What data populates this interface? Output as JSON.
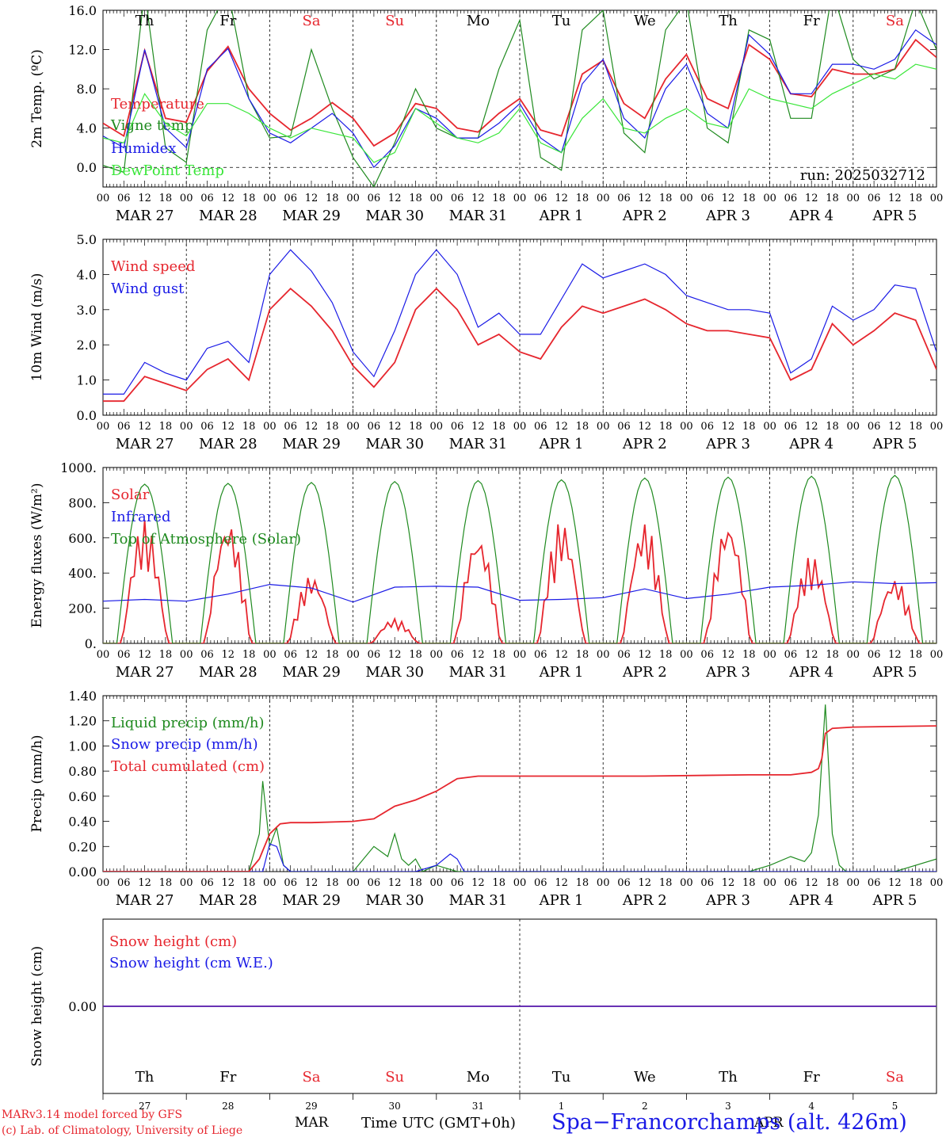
{
  "colors": {
    "red": "#e6262e",
    "green": "#1f8a1f",
    "blue": "#1a1ae6",
    "lightgreen": "#39e639",
    "black": "#000000"
  },
  "days": {
    "dates": [
      "MAR 27",
      "MAR 28",
      "MAR 29",
      "MAR 30",
      "MAR 31",
      "APR  1",
      "APR  2",
      "APR  3",
      "APR  4",
      "APR  5"
    ],
    "weekdays": [
      "Th",
      "Fr",
      "Sa",
      "Su",
      "Mo",
      "Tu",
      "We",
      "Th",
      "Fr",
      "Sa"
    ],
    "weekday_colors": [
      "#000000",
      "#000000",
      "#e6262e",
      "#e6262e",
      "#000000",
      "#000000",
      "#000000",
      "#000000",
      "#000000",
      "#e6262e"
    ],
    "daynums": [
      "27",
      "28",
      "29",
      "30",
      "31",
      "1",
      "2",
      "3",
      "4",
      "5"
    ],
    "hour_ticks": [
      "00",
      "06",
      "12",
      "18"
    ],
    "end_tick": "00"
  },
  "chart_data": [
    {
      "type": "line",
      "ylabel": "2m Temp. (ºC)",
      "ylim": [
        -2,
        16
      ],
      "yticks": [
        "0.0",
        "4.0",
        "8.0",
        "12.0",
        "16.0"
      ],
      "run_label": "run: 2025032712",
      "series": [
        {
          "name": "Temperature",
          "color": "#e6262e",
          "x": [
            0,
            6,
            12,
            18,
            24,
            30,
            36,
            42,
            48,
            54,
            60,
            66,
            72,
            78,
            84,
            90,
            96,
            102,
            108,
            114,
            120,
            126,
            132,
            138,
            144,
            150,
            156,
            162,
            168,
            174,
            180,
            186,
            192,
            198,
            204,
            210,
            216,
            222,
            228,
            234,
            240
          ],
          "values": [
            4.5,
            3.2,
            11.9,
            5.0,
            4.6,
            9.8,
            12.3,
            8.0,
            5.5,
            3.8,
            5.0,
            6.6,
            5.0,
            2.2,
            3.5,
            6.5,
            6.0,
            4.0,
            3.6,
            5.5,
            7.0,
            3.8,
            3.2,
            9.5,
            10.9,
            6.5,
            5.0,
            9.0,
            11.5,
            7.0,
            6.0,
            12.5,
            11.0,
            7.5,
            7.2,
            10.0,
            9.5,
            9.5,
            10.0,
            13.0,
            11.2
          ]
        },
        {
          "name": "Vigne temp",
          "color": "#1f8a1f",
          "x": [
            0,
            6,
            12,
            18,
            24,
            30,
            36,
            42,
            48,
            54,
            60,
            66,
            72,
            78,
            84,
            90,
            96,
            102,
            108,
            114,
            120,
            126,
            132,
            138,
            144,
            150,
            156,
            162,
            168,
            174,
            180,
            186,
            192,
            198,
            204,
            210,
            216,
            222,
            228,
            234,
            240
          ],
          "values": [
            0.2,
            -0.5,
            18.0,
            2.0,
            0.5,
            14.0,
            18.0,
            7.0,
            3.0,
            3.2,
            12.0,
            6.0,
            1.0,
            -2.0,
            2.5,
            8.0,
            4.0,
            3.0,
            3.0,
            10.0,
            15.0,
            1.0,
            -0.3,
            14.0,
            16.0,
            3.5,
            1.5,
            14.0,
            17.0,
            4.0,
            2.5,
            14.0,
            13.0,
            5.0,
            5.0,
            18.0,
            11.0,
            9.0,
            10.0,
            17.0,
            12.0
          ]
        },
        {
          "name": "Humidex",
          "color": "#1a1ae6",
          "x": [
            0,
            6,
            12,
            18,
            24,
            30,
            36,
            42,
            48,
            54,
            60,
            66,
            72,
            78,
            84,
            90,
            96,
            102,
            108,
            114,
            120,
            126,
            132,
            138,
            144,
            150,
            156,
            162,
            168,
            174,
            180,
            186,
            192,
            198,
            204,
            210,
            216,
            222,
            228,
            234,
            240
          ],
          "values": [
            3.2,
            2.0,
            12.0,
            4.0,
            2.0,
            10.0,
            12.1,
            7.0,
            3.5,
            2.5,
            4.0,
            5.5,
            3.5,
            0.0,
            2.2,
            6.0,
            5.0,
            3.0,
            3.0,
            4.5,
            6.5,
            3.0,
            1.5,
            8.5,
            11.0,
            5.0,
            3.0,
            8.0,
            10.5,
            5.5,
            4.0,
            13.5,
            11.5,
            7.5,
            7.5,
            10.5,
            10.5,
            10.0,
            11.0,
            14.0,
            12.5
          ]
        },
        {
          "name": "DewPoint Temp",
          "color": "#39e639",
          "x": [
            0,
            6,
            12,
            18,
            24,
            30,
            36,
            42,
            48,
            54,
            60,
            66,
            72,
            78,
            84,
            90,
            96,
            102,
            108,
            114,
            120,
            126,
            132,
            138,
            144,
            150,
            156,
            162,
            168,
            174,
            180,
            186,
            192,
            198,
            204,
            210,
            216,
            222,
            228,
            234,
            240
          ],
          "values": [
            3.0,
            2.5,
            7.5,
            4.5,
            3.2,
            6.5,
            6.5,
            5.5,
            4.0,
            3.0,
            4.0,
            3.5,
            3.0,
            0.5,
            1.5,
            6.0,
            4.5,
            3.0,
            2.5,
            3.5,
            6.0,
            2.5,
            1.5,
            5.0,
            7.0,
            4.0,
            3.5,
            5.0,
            6.0,
            4.5,
            4.0,
            8.0,
            7.0,
            6.5,
            6.0,
            7.5,
            8.5,
            9.5,
            9.0,
            10.5,
            10.0
          ]
        }
      ]
    },
    {
      "type": "line",
      "ylabel": "10m Wind (m/s)",
      "ylim": [
        0,
        5
      ],
      "yticks": [
        "0.0",
        "1.0",
        "2.0",
        "3.0",
        "4.0",
        "5.0"
      ],
      "series": [
        {
          "name": "Wind speed",
          "color": "#e6262e",
          "x": [
            0,
            6,
            12,
            18,
            24,
            30,
            36,
            42,
            48,
            54,
            60,
            66,
            72,
            78,
            84,
            90,
            96,
            102,
            108,
            114,
            120,
            126,
            132,
            138,
            144,
            150,
            156,
            162,
            168,
            174,
            180,
            186,
            192,
            198,
            204,
            210,
            216,
            222,
            228,
            234,
            240
          ],
          "values": [
            0.4,
            0.4,
            1.1,
            0.9,
            0.7,
            1.3,
            1.6,
            1.0,
            3.0,
            3.6,
            3.1,
            2.4,
            1.4,
            0.8,
            1.5,
            3.0,
            3.6,
            3.0,
            2.0,
            2.3,
            1.8,
            1.6,
            2.5,
            3.1,
            2.9,
            3.1,
            3.3,
            3.0,
            2.6,
            2.4,
            2.4,
            2.3,
            2.2,
            1.0,
            1.3,
            2.6,
            2.0,
            2.4,
            2.9,
            2.7,
            1.3
          ]
        },
        {
          "name": "Wind gust",
          "color": "#1a1ae6",
          "x": [
            0,
            6,
            12,
            18,
            24,
            30,
            36,
            42,
            48,
            54,
            60,
            66,
            72,
            78,
            84,
            90,
            96,
            102,
            108,
            114,
            120,
            126,
            132,
            138,
            144,
            150,
            156,
            162,
            168,
            174,
            180,
            186,
            192,
            198,
            204,
            210,
            216,
            222,
            228,
            234,
            240
          ],
          "values": [
            0.6,
            0.6,
            1.5,
            1.2,
            1.0,
            1.9,
            2.1,
            1.5,
            4.0,
            4.7,
            4.1,
            3.2,
            1.8,
            1.1,
            2.4,
            4.0,
            4.7,
            4.0,
            2.5,
            2.9,
            2.3,
            2.3,
            3.3,
            4.3,
            3.9,
            4.1,
            4.3,
            4.0,
            3.4,
            3.2,
            3.0,
            3.0,
            2.9,
            1.2,
            1.6,
            3.1,
            2.7,
            3.0,
            3.7,
            3.6,
            1.8
          ]
        }
      ]
    },
    {
      "type": "line",
      "ylabel": "Energy fluxes (W/m²)",
      "ylim": [
        0,
        1000
      ],
      "yticks": [
        "0.",
        "200.",
        "400.",
        "600.",
        "800.",
        "1000."
      ],
      "series": [
        {
          "name": "Solar",
          "color": "#e6262e",
          "peaks": [
            700,
            700,
            390,
            140,
            620,
            700,
            690,
            700,
            500,
            370
          ]
        },
        {
          "name": "Infrared",
          "color": "#1a1ae6",
          "x": [
            0,
            12,
            24,
            36,
            48,
            60,
            72,
            84,
            96,
            108,
            120,
            132,
            144,
            156,
            168,
            180,
            192,
            204,
            216,
            228,
            240
          ],
          "values": [
            240,
            250,
            240,
            280,
            335,
            315,
            235,
            320,
            325,
            320,
            245,
            250,
            260,
            310,
            255,
            280,
            320,
            330,
            350,
            340,
            345
          ]
        },
        {
          "name": "Top of Atmosphere (Solar)",
          "color": "#1f8a1f",
          "peaks": [
            905,
            910,
            915,
            920,
            925,
            930,
            940,
            945,
            950,
            955
          ]
        }
      ]
    },
    {
      "type": "line",
      "ylabel": "Precip (mm/h)",
      "ylim": [
        0,
        1.4
      ],
      "yticks": [
        "0.00",
        "0.20",
        "0.40",
        "0.60",
        "0.80",
        "1.00",
        "1.20",
        "1.40"
      ],
      "series": [
        {
          "name": "Liquid precip (mm/h)",
          "color": "#1f8a1f",
          "x": [
            0,
            42,
            45,
            46,
            48,
            50,
            52,
            54,
            60,
            72,
            78,
            82,
            84,
            86,
            88,
            90,
            92,
            96,
            102,
            120,
            144,
            168,
            186,
            192,
            198,
            202,
            204,
            206,
            208,
            210,
            212,
            214,
            220,
            228,
            240
          ],
          "values": [
            0,
            0,
            0.3,
            0.72,
            0.2,
            0.35,
            0.05,
            0,
            0,
            0,
            0.2,
            0.12,
            0.3,
            0.1,
            0.05,
            0.1,
            0,
            0.05,
            0,
            0,
            0,
            0,
            0,
            0.05,
            0.12,
            0.08,
            0.15,
            0.45,
            1.33,
            0.3,
            0.05,
            0,
            0,
            0,
            0.1
          ]
        },
        {
          "name": "Snow precip (mm/h)",
          "color": "#1a1ae6",
          "x": [
            0,
            46,
            48,
            50,
            52,
            54,
            90,
            96,
            100,
            102,
            104,
            240
          ],
          "values": [
            0,
            0,
            0.22,
            0.2,
            0.05,
            0,
            0,
            0.05,
            0.14,
            0.1,
            0,
            0
          ]
        },
        {
          "name": "Total cumulated (cm)",
          "color": "#e6262e",
          "x": [
            0,
            42,
            45,
            48,
            51,
            54,
            60,
            72,
            78,
            84,
            90,
            96,
            102,
            108,
            120,
            156,
            186,
            198,
            204,
            206,
            207,
            208,
            210,
            216,
            240
          ],
          "values": [
            0,
            0,
            0.1,
            0.3,
            0.38,
            0.39,
            0.39,
            0.4,
            0.42,
            0.52,
            0.57,
            0.64,
            0.74,
            0.76,
            0.76,
            0.76,
            0.77,
            0.77,
            0.79,
            0.82,
            0.9,
            1.1,
            1.14,
            1.15,
            1.16
          ]
        }
      ]
    },
    {
      "type": "line",
      "ylabel": "Snow height (cm)",
      "ylim": [
        -1,
        1
      ],
      "yticks": [
        "0.00"
      ],
      "series": [
        {
          "name": "Snow height (cm)",
          "color": "#e6262e",
          "x": [
            0,
            240
          ],
          "values": [
            0,
            0
          ]
        },
        {
          "name": "Snow height (cm W.E.)",
          "color": "#1a1ae6",
          "x": [
            0,
            240
          ],
          "values": [
            0,
            0
          ]
        }
      ]
    }
  ],
  "footer": {
    "model": "MARv3.14 model forced by GFS",
    "copyright": "(c) Lab. of Climatology, University of Liege",
    "month_mar": "MAR",
    "time_label": "Time UTC (GMT+0h)",
    "month_apr": "APR",
    "site": "Spa−Francorchamps (alt. 426m)"
  }
}
